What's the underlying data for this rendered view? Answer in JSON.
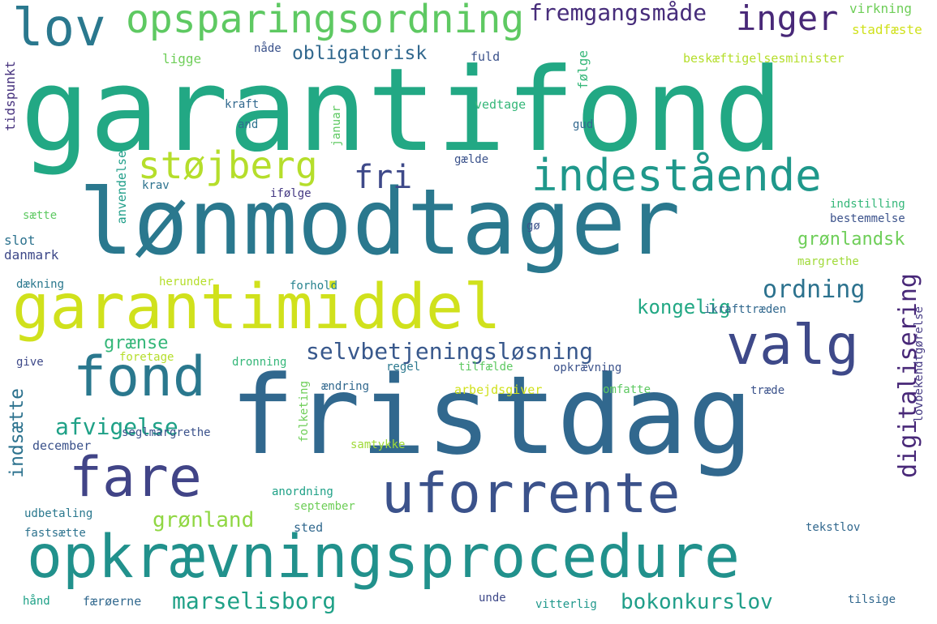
{
  "words": [
    {
      "text": "garantifond",
      "color": "#22a884"
    },
    {
      "text": "lønmodtager",
      "color": "#2a788e"
    },
    {
      "text": "fristdag",
      "color": "#31688e"
    },
    {
      "text": "opkrævningsprocedure",
      "color": "#21918c"
    },
    {
      "text": "garantimiddel",
      "color": "#d0e11c"
    },
    {
      "text": "valg",
      "color": "#3e4989"
    },
    {
      "text": "fond",
      "color": "#2a788e"
    },
    {
      "text": "fare",
      "color": "#414487"
    },
    {
      "text": "uforrente",
      "color": "#3b528b"
    },
    {
      "text": "indestående",
      "color": "#1f988b"
    },
    {
      "text": "lov",
      "color": "#2a788e"
    },
    {
      "text": "opsparingsordning",
      "color": "#5ec962"
    },
    {
      "text": "inger",
      "color": "#482878"
    },
    {
      "text": "fremgangsmåde",
      "color": "#472d7b"
    },
    {
      "text": "støjberg",
      "color": "#b5de2b"
    },
    {
      "text": "fri",
      "color": "#3e4989"
    },
    {
      "text": "obligatorisk",
      "color": "#31688e"
    },
    {
      "text": "ordning",
      "color": "#2c728e"
    },
    {
      "text": "kongelig",
      "color": "#22a884"
    },
    {
      "text": "grønlandsk",
      "color": "#6ece58"
    },
    {
      "text": "selvbetjeningsløsning",
      "color": "#38588c"
    },
    {
      "text": "digitalisering",
      "color": "#482878"
    },
    {
      "text": "grænse",
      "color": "#35b779"
    },
    {
      "text": "afvigelse",
      "color": "#1fa187"
    },
    {
      "text": "indsætte",
      "color": "#2c728e"
    },
    {
      "text": "grønland",
      "color": "#90d743"
    },
    {
      "text": "marselisborg",
      "color": "#1fa187"
    },
    {
      "text": "bokonkurslov",
      "color": "#1f9e89"
    },
    {
      "text": "virkning",
      "color": "#6ece58"
    },
    {
      "text": "stadfæste",
      "color": "#d0e11c"
    },
    {
      "text": "beskæftigelsesminister",
      "color": "#b5de2b"
    },
    {
      "text": "tidspunkt",
      "color": "#46327e"
    },
    {
      "text": "ligge",
      "color": "#6ece58"
    },
    {
      "text": "nåde",
      "color": "#3b528b"
    },
    {
      "text": "fuld",
      "color": "#3b528b"
    },
    {
      "text": "følge",
      "color": "#35b779"
    },
    {
      "text": "kraft",
      "color": "#31688e"
    },
    {
      "text": "and",
      "color": "#2c728e"
    },
    {
      "text": "januar",
      "color": "#5ec962"
    },
    {
      "text": "vedtage",
      "color": "#35b779"
    },
    {
      "text": "gud",
      "color": "#31688e"
    },
    {
      "text": "anvendelse",
      "color": "#1f9e89"
    },
    {
      "text": "gælde",
      "color": "#3b528b"
    },
    {
      "text": "krav",
      "color": "#2c728e"
    },
    {
      "text": "ifølge",
      "color": "#443983"
    },
    {
      "text": "sætte",
      "color": "#5ec962"
    },
    {
      "text": "indstilling",
      "color": "#35b779"
    },
    {
      "text": "bestemmelse",
      "color": "#3b528b"
    },
    {
      "text": "slot",
      "color": "#2c728e"
    },
    {
      "text": "gø",
      "color": "#3b528b"
    },
    {
      "text": "danmark",
      "color": "#3e4989"
    },
    {
      "text": "margrethe",
      "color": "#a0da39"
    },
    {
      "text": "dækning",
      "color": "#2a788e"
    },
    {
      "text": "herunder",
      "color": "#b5de2b"
    },
    {
      "text": "forhold",
      "color": "#26828e"
    },
    {
      "text": "ikrafttræden",
      "color": "#31688e"
    },
    {
      "text": "lovbekendtgørelse",
      "color": "#443983"
    },
    {
      "text": "give",
      "color": "#3e4989"
    },
    {
      "text": "foretage",
      "color": "#b5de2b"
    },
    {
      "text": "dronning",
      "color": "#35b779"
    },
    {
      "text": "regel",
      "color": "#2a788e"
    },
    {
      "text": "tilfælde",
      "color": "#5ec962"
    },
    {
      "text": "opkrævning",
      "color": "#3b528b"
    },
    {
      "text": "ændring",
      "color": "#31688e"
    },
    {
      "text": "arbejdsgiver",
      "color": "#d0e11c"
    },
    {
      "text": "omfatte",
      "color": "#5ec962"
    },
    {
      "text": "træde",
      "color": "#3b528b"
    },
    {
      "text": "december",
      "color": "#3b528b"
    },
    {
      "text": "seglmargrethe",
      "color": "#3b528b"
    },
    {
      "text": "samtykke",
      "color": "#a0da39"
    },
    {
      "text": "folketing",
      "color": "#6ece58"
    },
    {
      "text": "anordning",
      "color": "#1fa187"
    },
    {
      "text": "september",
      "color": "#6ece58"
    },
    {
      "text": "udbetaling",
      "color": "#2a788e"
    },
    {
      "text": "fastsætte",
      "color": "#2c728e"
    },
    {
      "text": "sted",
      "color": "#31688e"
    },
    {
      "text": "tekstlov",
      "color": "#31688e"
    },
    {
      "text": "hånd",
      "color": "#1fa187"
    },
    {
      "text": "færøerne",
      "color": "#31688e"
    },
    {
      "text": "unde",
      "color": "#3e4989"
    },
    {
      "text": "vitterlig",
      "color": "#1f988b"
    },
    {
      "text": "tilsige",
      "color": "#31688e"
    }
  ]
}
